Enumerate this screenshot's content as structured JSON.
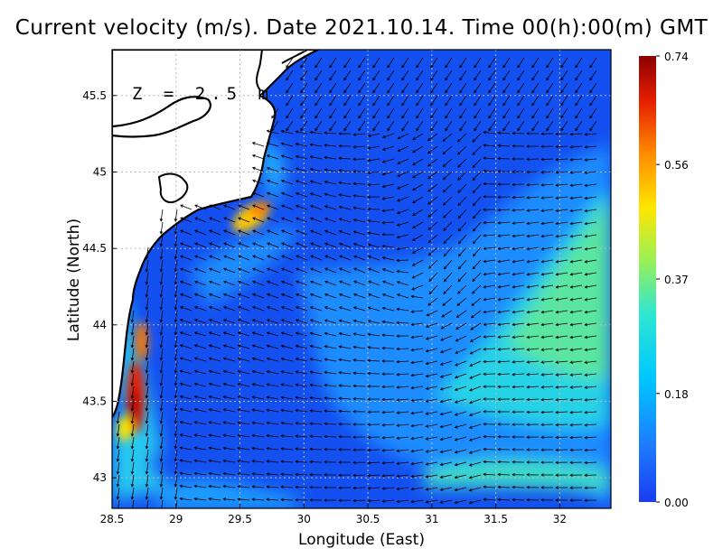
{
  "title": "Current velocity (m/s). Date 2021.10.14. Time 00(h):00(m) GMT",
  "depth_label": "Z = 2.5 m",
  "axes": {
    "xlabel": "Longitude (East)",
    "ylabel": "Latitude (North)",
    "xlim": [
      28.5,
      32.4
    ],
    "ylim": [
      42.8,
      45.8
    ],
    "xticks": [
      "28.5",
      "29",
      "29.5",
      "30",
      "30.5",
      "31",
      "31.5",
      "32"
    ],
    "yticks": [
      "43",
      "43.5",
      "44",
      "44.5",
      "45",
      "45.5"
    ],
    "grid": true
  },
  "colorbar": {
    "ticks": [
      "0.74",
      "0.56",
      "0.37",
      "0.18",
      "0.00"
    ],
    "range": [
      0.0,
      0.74
    ],
    "colors": [
      "#1a3cf0",
      "#1e78ff",
      "#00c8ff",
      "#5ae0b4",
      "#c8f03c",
      "#ffe600",
      "#ff8c00",
      "#e61e00",
      "#8c0000"
    ]
  },
  "colors": {
    "land": "#ffffff",
    "coast": "#000000",
    "sea_base": "#1450f0"
  }
}
